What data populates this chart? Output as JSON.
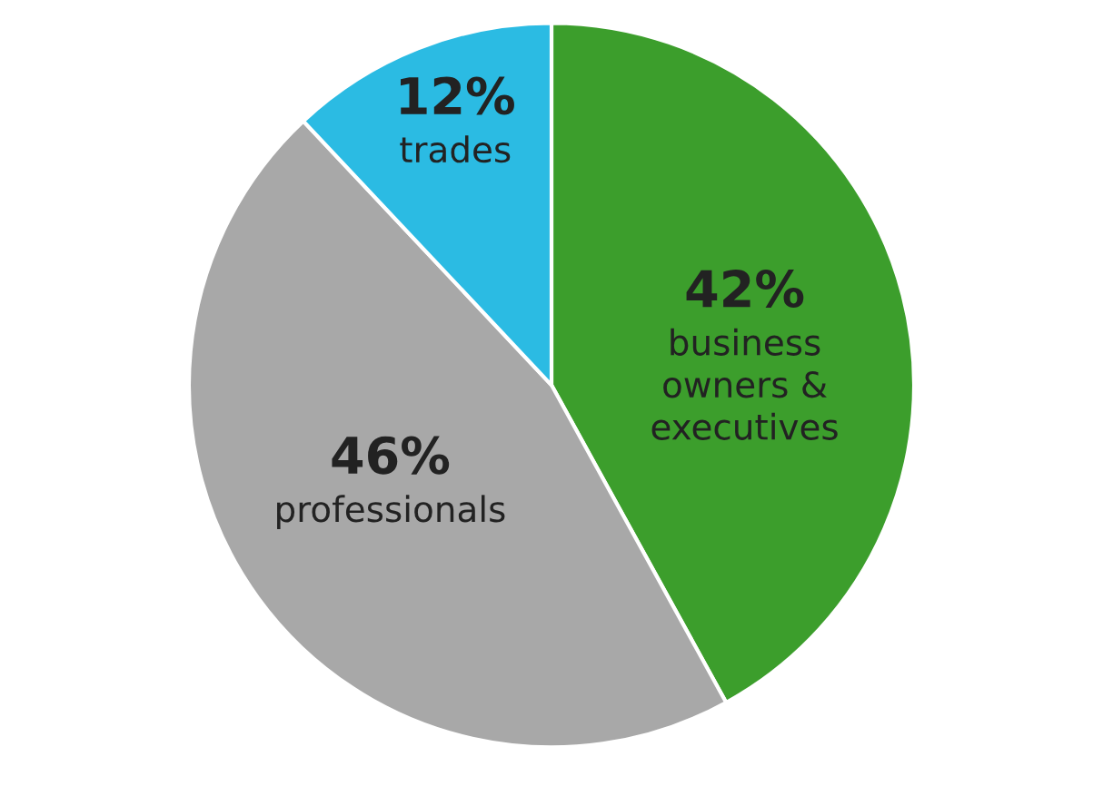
{
  "chart_data": {
    "type": "pie",
    "categories": [
      "business\nowners &\nexecutives",
      "professionals",
      "trades"
    ],
    "values": [
      42,
      46,
      12
    ],
    "value_labels": [
      "42%",
      "46%",
      "12%"
    ],
    "colors": [
      "#3c9e2c",
      "#a8a8a8",
      "#2bbbe3"
    ]
  }
}
